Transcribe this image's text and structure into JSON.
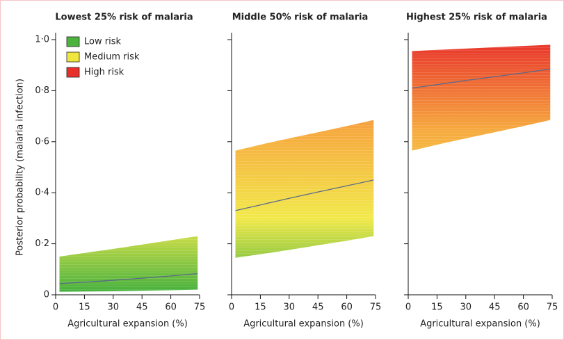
{
  "chart_data": [
    {
      "type": "band",
      "title": "Lowest 25% risk of malaria",
      "y_label": "Posterior probability (malaria infection)",
      "x_label": "Agricultural expansion (%)",
      "x": [
        2,
        16,
        30,
        45,
        60,
        74
      ],
      "upper": [
        0.15,
        0.165,
        0.18,
        0.197,
        0.214,
        0.23
      ],
      "lower": [
        0.012,
        0.013,
        0.014,
        0.016,
        0.018,
        0.02
      ],
      "mean": [
        0.044,
        0.05,
        0.057,
        0.065,
        0.074,
        0.083
      ],
      "mean_color": "#5a6a8a",
      "xlim": [
        0,
        75
      ],
      "xticks": [
        0,
        15,
        30,
        45,
        60,
        75
      ],
      "ylim": [
        0,
        1
      ],
      "yticks": [
        0,
        {
          "value": 0.2,
          "label": "0·2"
        },
        {
          "value": 0.4,
          "label": "0·4"
        },
        {
          "value": 0.6,
          "label": "0·6"
        },
        {
          "value": 0.8,
          "label": "0·8"
        },
        {
          "value": 1.0,
          "label": "1·0"
        }
      ],
      "legend": [
        {
          "label": "Low risk",
          "color": "#4cb43c"
        },
        {
          "label": "Medium risk",
          "color": "#f0e640"
        },
        {
          "label": "High risk",
          "color": "#e8302a"
        }
      ]
    },
    {
      "type": "band",
      "title": "Middle 50% risk of malaria",
      "x_label": "Agricultural expansion (%)",
      "x": [
        2,
        16,
        30,
        45,
        60,
        74
      ],
      "upper": [
        0.565,
        0.59,
        0.613,
        0.637,
        0.661,
        0.685
      ],
      "lower": [
        0.145,
        0.16,
        0.176,
        0.194,
        0.212,
        0.23
      ],
      "mean": [
        0.33,
        0.354,
        0.378,
        0.403,
        0.427,
        0.45
      ],
      "mean_color": "#5a6a8a",
      "xlim": [
        0,
        75
      ],
      "xticks": [
        0,
        15,
        30,
        45,
        60,
        75
      ],
      "ylim": [
        0,
        1
      ],
      "yticks": [
        0,
        0.2,
        0.4,
        0.6,
        0.8,
        1
      ]
    },
    {
      "type": "band",
      "title": "Highest 25% risk of malaria",
      "x_label": "Agricultural expansion (%)",
      "x": [
        2,
        16,
        30,
        45,
        60,
        74
      ],
      "upper": [
        0.955,
        0.96,
        0.965,
        0.97,
        0.975,
        0.98
      ],
      "lower": [
        0.565,
        0.59,
        0.613,
        0.637,
        0.661,
        0.685
      ],
      "mean": [
        0.81,
        0.825,
        0.84,
        0.855,
        0.87,
        0.885
      ],
      "mean_color": "#5a6a8a",
      "xlim": [
        0,
        75
      ],
      "xticks": [
        0,
        15,
        30,
        45,
        60,
        75
      ],
      "ylim": [
        0,
        1
      ],
      "yticks": [
        0,
        0.2,
        0.4,
        0.6,
        0.8,
        1
      ]
    }
  ]
}
